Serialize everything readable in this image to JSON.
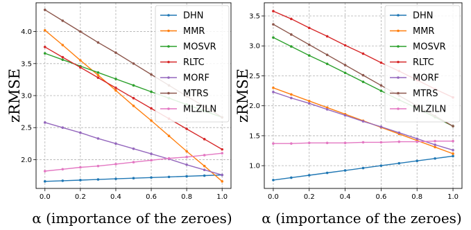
{
  "chart_data": [
    {
      "type": "line",
      "xlabel": "α (importance of the zeroes)",
      "ylabel": "zRMSE",
      "xlim": [
        -0.05,
        1.05
      ],
      "ylim": [
        1.55,
        4.45
      ],
      "x": [
        0.0,
        0.1,
        0.2,
        0.3,
        0.4,
        0.5,
        0.6,
        0.7,
        0.8,
        0.9,
        1.0
      ],
      "x_ticks": [
        "0.0",
        "0.2",
        "0.4",
        "0.6",
        "0.8",
        "1.0"
      ],
      "y_ticks": [
        "2.0",
        "2.5",
        "3.0",
        "3.5",
        "4.0"
      ],
      "grid": true,
      "legend_position": "top-right",
      "series": [
        {
          "name": "DHN",
          "color": "#1f77b4",
          "values": [
            1.66,
            1.67,
            1.68,
            1.69,
            1.7,
            1.71,
            1.72,
            1.73,
            1.74,
            1.75,
            1.76
          ]
        },
        {
          "name": "MMR",
          "color": "#ff7f0e",
          "values": [
            4.02,
            3.79,
            3.55,
            3.32,
            3.08,
            2.84,
            2.61,
            2.37,
            2.13,
            1.9,
            1.66
          ]
        },
        {
          "name": "MOSVR",
          "color": "#2ca02c",
          "values": [
            3.66,
            3.56,
            3.46,
            3.36,
            3.26,
            3.16,
            3.06,
            2.96,
            2.86,
            2.76,
            2.66
          ]
        },
        {
          "name": "RLTC",
          "color": "#d62728",
          "values": [
            3.76,
            3.6,
            3.44,
            3.28,
            3.12,
            2.96,
            2.8,
            2.64,
            2.48,
            2.32,
            2.16
          ]
        },
        {
          "name": "MORF",
          "color": "#9467bd",
          "values": [
            2.58,
            2.5,
            2.42,
            2.33,
            2.25,
            2.17,
            2.09,
            2.01,
            1.92,
            1.84,
            1.76
          ]
        },
        {
          "name": "MTRS",
          "color": "#8c564b",
          "values": [
            4.34,
            4.17,
            4.0,
            3.83,
            3.67,
            3.5,
            3.33,
            3.16,
            2.99,
            2.83,
            2.66
          ]
        },
        {
          "name": "MLZILN",
          "color": "#e377c2",
          "values": [
            1.82,
            1.85,
            1.88,
            1.9,
            1.93,
            1.96,
            1.99,
            2.02,
            2.04,
            2.07,
            2.1
          ]
        }
      ]
    },
    {
      "type": "line",
      "xlabel": "α (importance of the zeroes)",
      "ylabel": "zRMSE",
      "xlim": [
        -0.05,
        1.05
      ],
      "ylim": [
        0.62,
        3.72
      ],
      "x": [
        0.0,
        0.1,
        0.2,
        0.3,
        0.4,
        0.5,
        0.6,
        0.7,
        0.8,
        0.9,
        1.0
      ],
      "x_ticks": [
        "0.0",
        "0.2",
        "0.4",
        "0.6",
        "0.8",
        "1.0"
      ],
      "y_ticks": [
        "1.0",
        "1.5",
        "2.0",
        "2.5",
        "3.0",
        "3.5"
      ],
      "grid": true,
      "legend_position": "top-right",
      "series": [
        {
          "name": "DHN",
          "color": "#1f77b4",
          "values": [
            0.76,
            0.8,
            0.84,
            0.88,
            0.92,
            0.96,
            1.0,
            1.04,
            1.08,
            1.12,
            1.16
          ]
        },
        {
          "name": "MMR",
          "color": "#ff7f0e",
          "values": [
            2.3,
            2.19,
            2.08,
            1.97,
            1.86,
            1.75,
            1.64,
            1.53,
            1.42,
            1.31,
            1.2
          ]
        },
        {
          "name": "MOSVR",
          "color": "#2ca02c",
          "values": [
            3.14,
            2.99,
            2.84,
            2.7,
            2.55,
            2.4,
            2.25,
            2.1,
            1.96,
            1.81,
            1.66
          ]
        },
        {
          "name": "RLTC",
          "color": "#d62728",
          "values": [
            3.58,
            3.45,
            3.3,
            3.16,
            3.01,
            2.87,
            2.72,
            2.58,
            2.43,
            2.28,
            2.14
          ]
        },
        {
          "name": "MORF",
          "color": "#9467bd",
          "values": [
            2.23,
            2.13,
            2.04,
            1.94,
            1.84,
            1.74,
            1.65,
            1.55,
            1.45,
            1.35,
            1.26
          ]
        },
        {
          "name": "MTRS",
          "color": "#8c564b",
          "values": [
            3.36,
            3.19,
            3.02,
            2.85,
            2.68,
            2.51,
            2.34,
            2.17,
            2.0,
            1.83,
            1.66
          ]
        },
        {
          "name": "MLZILN",
          "color": "#e377c2",
          "values": [
            1.37,
            1.37,
            1.38,
            1.38,
            1.38,
            1.39,
            1.39,
            1.4,
            1.4,
            1.41,
            1.41
          ]
        }
      ]
    }
  ]
}
